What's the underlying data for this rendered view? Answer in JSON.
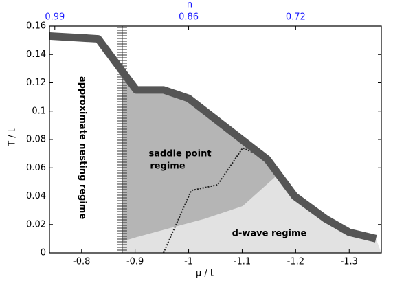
{
  "chart_data": {
    "type": "phase-diagram",
    "xlabel": "μ / t",
    "ylabel": "T / t",
    "x2label": "n",
    "xlim": [
      -0.74,
      -1.36
    ],
    "ylim": [
      0,
      0.16
    ],
    "xticks": [
      -0.8,
      -0.9,
      -1,
      -1.1,
      -1.2,
      -1.3
    ],
    "yticks": [
      0,
      0.02,
      0.04,
      0.06,
      0.08,
      0.1,
      0.12,
      0.14,
      0.16
    ],
    "x2ticks": [
      {
        "value": -0.75,
        "label": "0.99"
      },
      {
        "value": -1.0,
        "label": "0.86"
      },
      {
        "value": -1.2,
        "label": "0.72"
      }
    ],
    "x2color": "#1a1aff",
    "saddle_region": {
      "color": "#b5b5b5",
      "x": [
        -0.876,
        -0.902,
        -0.953,
        -1.0,
        -1.147,
        -1.166,
        -1.101,
        -1.03,
        -0.902,
        -0.876
      ],
      "y": [
        0.128,
        0.115,
        0.115,
        0.109,
        0.066,
        0.055,
        0.033,
        0.024,
        0.011,
        0.008
      ]
    },
    "dwave_region": {
      "color": "#e2e2e2",
      "x": [
        -0.876,
        -0.902,
        -1.03,
        -1.101,
        -1.166,
        -1.198,
        -1.256,
        -1.3,
        -1.35,
        -1.36,
        -0.876
      ],
      "y": [
        0.008,
        0.011,
        0.024,
        0.033,
        0.055,
        0.04,
        0.024,
        0.0145,
        0.01,
        0,
        0
      ]
    },
    "tc_line": {
      "color": "#555555",
      "x": [
        -0.74,
        -0.831,
        -0.902,
        -0.953,
        -1.0,
        -1.147,
        -1.198,
        -1.256,
        -1.3,
        -1.35
      ],
      "y": [
        0.153,
        0.151,
        0.115,
        0.115,
        0.109,
        0.066,
        0.04,
        0.024,
        0.0145,
        0.01
      ]
    },
    "dotted_line": {
      "color": "#222222",
      "x": [
        -0.953,
        -1.005,
        -1.054,
        -1.101,
        -1.144
      ],
      "y": [
        0,
        0.044,
        0.048,
        0.074,
        0.067
      ]
    },
    "hatch_x": -0.876,
    "annotations": [
      "approximate nesting regime",
      "saddle point",
      "regime",
      "d-wave regime"
    ]
  }
}
